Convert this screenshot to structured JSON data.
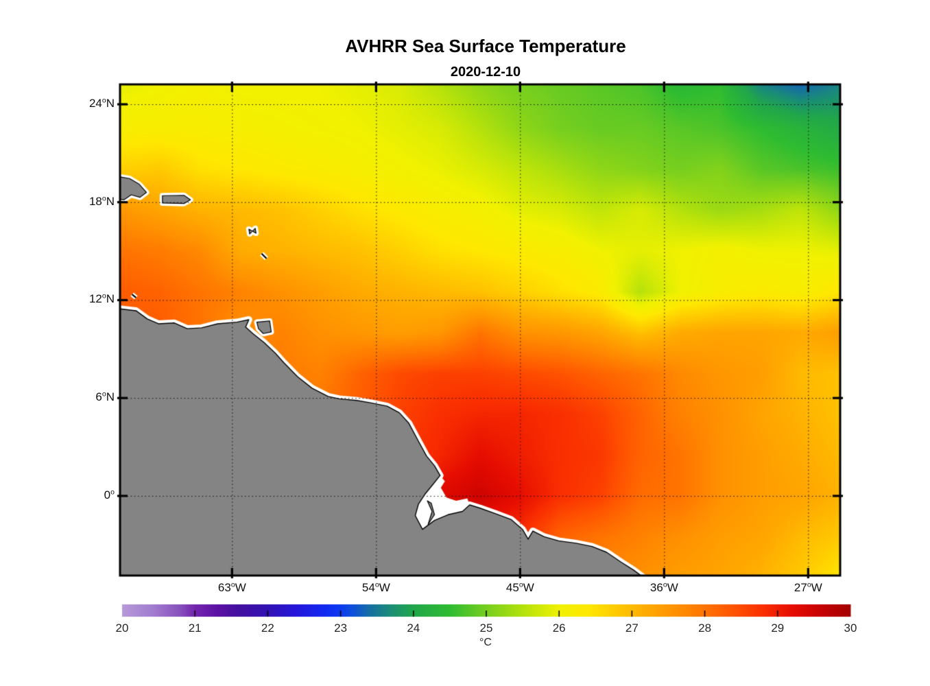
{
  "figure": {
    "title": "AVHRR Sea Surface Temperature",
    "subtitle": "2020-12-10"
  },
  "axes": {
    "x_ticks": [
      {
        "lon": -63,
        "label": "63°W"
      },
      {
        "lon": -54,
        "label": "54°W"
      },
      {
        "lon": -45,
        "label": "45°W"
      },
      {
        "lon": -36,
        "label": "36°W"
      },
      {
        "lon": -27,
        "label": "27°W"
      }
    ],
    "y_ticks": [
      {
        "lat": 24,
        "label": "24°N"
      },
      {
        "lat": 18,
        "label": "18°N"
      },
      {
        "lat": 12,
        "label": "12°N"
      },
      {
        "lat": 6,
        "label": "6°N"
      },
      {
        "lat": 0,
        "label": "0°"
      }
    ],
    "grid_style": "dotted"
  },
  "colorbar": {
    "min": 20,
    "max": 30,
    "tick_labels": [
      "20",
      "21",
      "22",
      "23",
      "24",
      "25",
      "26",
      "27",
      "28",
      "29",
      "30"
    ],
    "unit": "°C"
  },
  "chart_data": {
    "type": "heatmap",
    "title": "AVHRR Sea Surface Temperature",
    "subtitle": "2020-12-10",
    "xlabel_ticks": [
      "63°W",
      "54°W",
      "45°W",
      "36°W",
      "27°W"
    ],
    "ylabel_ticks": [
      "24°N",
      "18°N",
      "12°N",
      "6°N",
      "0°"
    ],
    "lon_range": [
      -70,
      -25
    ],
    "lat_range": [
      -4.88,
      25.22
    ],
    "colorbar_range": [
      20,
      30
    ],
    "colorbar_unit": "°C",
    "grid_lons": [
      -70,
      -67.5,
      -65,
      -62.5,
      -60,
      -57.5,
      -55,
      -52.5,
      -50,
      -47.5,
      -45,
      -42.5,
      -40,
      -37.5,
      -35,
      -32.5,
      -30,
      -27.5,
      -25
    ],
    "grid_lats": [
      25.2,
      22.5,
      20,
      17.5,
      15,
      12.5,
      10,
      7.5,
      5,
      2.5,
      0,
      -2.5,
      -4.9
    ],
    "sst_grid": [
      [
        25.9,
        26.0,
        26.1,
        26.0,
        26.0,
        26.0,
        25.9,
        25.8,
        25.5,
        25.2,
        25.0,
        24.9,
        24.8,
        24.7,
        24.4,
        24.5,
        23.6,
        23.3,
        23.6
      ],
      [
        26.2,
        26.2,
        26.2,
        26.15,
        26.1,
        26.05,
        26.0,
        25.9,
        25.8,
        25.5,
        25.2,
        25.0,
        24.9,
        24.9,
        24.8,
        24.7,
        24.5,
        24.3,
        24.1
      ],
      [
        26.7,
        26.8,
        26.5,
        26.4,
        26.3,
        26.25,
        26.15,
        26.05,
        25.95,
        25.8,
        25.6,
        25.4,
        25.2,
        25.1,
        25.0,
        25.1,
        24.8,
        24.7,
        24.6
      ],
      [
        27.5,
        27.3,
        27.1,
        27.0,
        26.9,
        26.7,
        26.5,
        26.35,
        26.2,
        26.1,
        25.9,
        25.8,
        25.6,
        25.8,
        25.5,
        25.3,
        25.4,
        25.6,
        25.2
      ],
      [
        28.0,
        27.9,
        27.7,
        27.2,
        27.1,
        27.0,
        26.9,
        26.7,
        26.5,
        26.4,
        26.3,
        26.2,
        26.0,
        25.9,
        26.0,
        26.1,
        26.0,
        26.0,
        25.9
      ],
      [
        28.3,
        28.2,
        28.0,
        27.8,
        27.6,
        27.4,
        27.2,
        27.1,
        27.0,
        26.9,
        26.7,
        26.5,
        26.3,
        25.5,
        26.0,
        26.2,
        26.3,
        26.2,
        26.4
      ],
      [
        28.2,
        28.3,
        28.0,
        27.6,
        27.8,
        27.6,
        27.5,
        27.4,
        27.5,
        28.0,
        27.6,
        27.5,
        27.3,
        26.9,
        27.2,
        27.3,
        27.3,
        27.2,
        27.4
      ],
      [
        28.0,
        28.0,
        27.9,
        27.9,
        27.9,
        27.8,
        28.2,
        28.5,
        28.6,
        28.6,
        28.5,
        28.4,
        28.2,
        28.0,
        27.7,
        27.5,
        27.4,
        27.0,
        26.9
      ],
      [
        28.2,
        28.2,
        28.2,
        28.2,
        28.1,
        28.0,
        28.3,
        28.6,
        28.8,
        28.9,
        28.9,
        28.8,
        28.6,
        28.2,
        27.8,
        27.6,
        27.3,
        27.1,
        26.9
      ],
      [
        28.5,
        28.5,
        28.5,
        28.5,
        28.4,
        28.4,
        28.5,
        28.7,
        28.9,
        29.2,
        29.0,
        28.8,
        28.7,
        28.2,
        28.0,
        27.6,
        27.4,
        27.2,
        27.0
      ],
      [
        28.8,
        28.8,
        28.8,
        28.8,
        28.8,
        28.8,
        28.8,
        29.0,
        29.3,
        29.5,
        29.2,
        28.8,
        28.6,
        28.1,
        28.0,
        27.6,
        27.4,
        27.3,
        27.1
      ],
      [
        28.6,
        28.6,
        28.6,
        28.6,
        28.6,
        28.6,
        28.6,
        28.7,
        28.8,
        28.9,
        28.8,
        28.2,
        28.0,
        27.8,
        27.6,
        27.4,
        27.3,
        27.0,
        26.8
      ],
      [
        28.5,
        28.5,
        28.5,
        28.5,
        28.5,
        28.5,
        28.5,
        28.5,
        28.6,
        28.7,
        28.6,
        28.0,
        27.7,
        27.6,
        27.4,
        27.3,
        27.1,
        26.8,
        26.4
      ]
    ],
    "colormap_stops": [
      [
        20.0,
        "#b79ad8"
      ],
      [
        20.4,
        "#a37fd0"
      ],
      [
        20.8,
        "#8850bc"
      ],
      [
        21.0,
        "#7325ae"
      ],
      [
        21.3,
        "#5c12a4"
      ],
      [
        21.6,
        "#44109f"
      ],
      [
        22.0,
        "#3212b4"
      ],
      [
        22.4,
        "#2417dc"
      ],
      [
        22.8,
        "#112bf2"
      ],
      [
        23.0,
        "#0d3cf0"
      ],
      [
        23.2,
        "#0f55d2"
      ],
      [
        23.4,
        "#1670a2"
      ],
      [
        23.7,
        "#1b8f74"
      ],
      [
        24.0,
        "#21a74b"
      ],
      [
        24.5,
        "#2fbc31"
      ],
      [
        25.0,
        "#77cf1f"
      ],
      [
        25.5,
        "#b5e20c"
      ],
      [
        26.0,
        "#f1f200"
      ],
      [
        26.4,
        "#ffe800"
      ],
      [
        26.8,
        "#ffc900"
      ],
      [
        27.2,
        "#ffab00"
      ],
      [
        27.6,
        "#ff9100"
      ],
      [
        28.0,
        "#ff7400"
      ],
      [
        28.4,
        "#ff5300"
      ],
      [
        28.8,
        "#fa2f00"
      ],
      [
        29.2,
        "#e60d00"
      ],
      [
        29.6,
        "#c60200"
      ],
      [
        30.0,
        "#a30000"
      ]
    ],
    "colors": {
      "land": "#848484",
      "coastline": "#000000",
      "missing_data": "#ffffff",
      "gridline": "#111111",
      "axis": "#000000",
      "background": "#ffffff"
    },
    "land": {
      "mainland_south_america": [
        [
          -70.3,
          11.5
        ],
        [
          -69.0,
          11.35
        ],
        [
          -68.3,
          10.85
        ],
        [
          -67.6,
          10.55
        ],
        [
          -66.6,
          10.6
        ],
        [
          -65.8,
          10.25
        ],
        [
          -64.9,
          10.3
        ],
        [
          -63.9,
          10.55
        ],
        [
          -62.7,
          10.65
        ],
        [
          -61.95,
          10.8
        ],
        [
          -62.15,
          10.35
        ],
        [
          -61.7,
          9.95
        ],
        [
          -61.0,
          9.4
        ],
        [
          -60.3,
          8.75
        ],
        [
          -59.75,
          8.15
        ],
        [
          -58.9,
          7.3
        ],
        [
          -58.0,
          6.6
        ],
        [
          -57.0,
          6.1
        ],
        [
          -56.3,
          5.95
        ],
        [
          -55.2,
          5.85
        ],
        [
          -54.3,
          5.7
        ],
        [
          -53.3,
          5.5
        ],
        [
          -52.55,
          5.1
        ],
        [
          -51.95,
          4.45
        ],
        [
          -51.35,
          3.35
        ],
        [
          -50.85,
          2.45
        ],
        [
          -50.35,
          1.85
        ],
        [
          -50.0,
          1.25
        ],
        [
          -50.45,
          0.7
        ],
        [
          -50.95,
          0.1
        ],
        [
          -51.35,
          -0.5
        ],
        [
          -51.55,
          -1.2
        ],
        [
          -51.1,
          -2.05
        ],
        [
          -50.35,
          -1.5
        ],
        [
          -49.5,
          -1.15
        ],
        [
          -48.6,
          -0.95
        ],
        [
          -48.15,
          -0.55
        ],
        [
          -47.5,
          -0.75
        ],
        [
          -46.5,
          -1.1
        ],
        [
          -45.55,
          -1.45
        ],
        [
          -44.85,
          -2.05
        ],
        [
          -44.5,
          -2.65
        ],
        [
          -44.2,
          -2.15
        ],
        [
          -43.5,
          -2.5
        ],
        [
          -42.6,
          -2.75
        ],
        [
          -41.5,
          -2.9
        ],
        [
          -40.5,
          -3.1
        ],
        [
          -39.6,
          -3.45
        ],
        [
          -38.7,
          -4.05
        ],
        [
          -37.9,
          -4.55
        ],
        [
          -37.15,
          -5.1
        ],
        [
          -37.0,
          -5.4
        ],
        [
          -70.3,
          -5.4
        ]
      ],
      "estuary_gap": [
        [
          -50.0,
          1.25
        ],
        [
          -50.45,
          0.7
        ],
        [
          -50.95,
          0.1
        ],
        [
          -51.35,
          -0.5
        ],
        [
          -51.55,
          -1.2
        ],
        [
          -51.1,
          -2.05
        ],
        [
          -50.35,
          -1.5
        ],
        [
          -49.5,
          -1.15
        ],
        [
          -48.6,
          -0.95
        ],
        [
          -48.15,
          -0.55
        ],
        [
          -48.3,
          -0.15
        ],
        [
          -49.0,
          -0.3
        ],
        [
          -49.6,
          -0.1
        ],
        [
          -49.95,
          0.5
        ],
        [
          -49.7,
          0.9
        ]
      ],
      "estuary_islet": [
        [
          -50.8,
          -0.3
        ],
        [
          -50.5,
          -0.95
        ],
        [
          -50.75,
          -1.75
        ],
        [
          -50.35,
          -1.15
        ],
        [
          -50.55,
          -0.45
        ]
      ],
      "islands": [
        {
          "name": "hispaniola-east",
          "pts": [
            [
              -70.3,
              19.6
            ],
            [
              -69.4,
              19.45
            ],
            [
              -68.8,
              19.1
            ],
            [
              -68.35,
              18.6
            ],
            [
              -68.75,
              18.3
            ],
            [
              -69.3,
              18.45
            ],
            [
              -69.75,
              18.15
            ],
            [
              -70.3,
              18.2
            ]
          ]
        },
        {
          "name": "puerto-rico",
          "pts": [
            [
              -67.35,
              18.4
            ],
            [
              -66.0,
              18.42
            ],
            [
              -65.6,
              18.15
            ],
            [
              -66.0,
              17.92
            ],
            [
              -67.35,
              17.95
            ]
          ]
        },
        {
          "name": "guadeloupe",
          "pts": [
            [
              -61.95,
              16.35
            ],
            [
              -61.5,
              16.1
            ],
            [
              -61.55,
              16.4
            ],
            [
              -61.9,
              16.05
            ]
          ]
        },
        {
          "name": "trinidad",
          "pts": [
            [
              -61.45,
              10.65
            ],
            [
              -60.65,
              10.72
            ],
            [
              -60.55,
              10.05
            ],
            [
              -61.05,
              9.95
            ],
            [
              -61.35,
              10.25
            ]
          ]
        }
      ],
      "island_lines": [
        {
          "name": "martinique",
          "pts": [
            [
              -61.15,
              14.85
            ],
            [
              -60.85,
              14.55
            ]
          ]
        },
        {
          "name": "bonaire",
          "pts": [
            [
              -69.25,
              12.35
            ],
            [
              -69.0,
              12.15
            ]
          ]
        }
      ]
    },
    "legend_position": "bottom",
    "grid": true
  }
}
